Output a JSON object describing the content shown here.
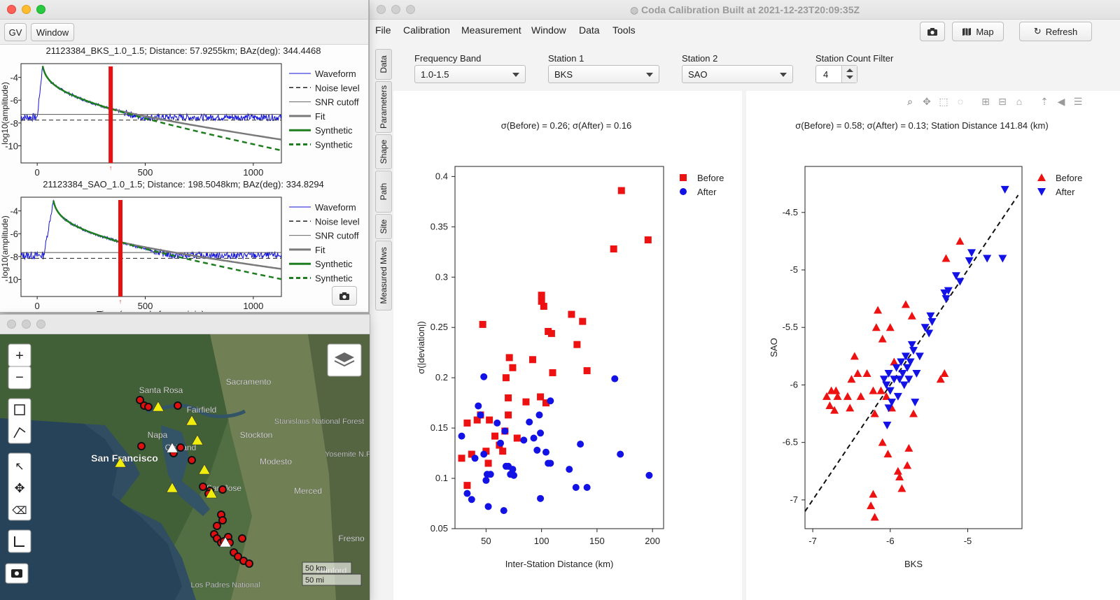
{
  "main_window": {
    "title": "Coda Calibration Built at 2021-12-23T20:09:35Z",
    "menu": [
      "File",
      "Calibration",
      "Measurement",
      "Window",
      "Data",
      "Tools"
    ],
    "toolbar": {
      "map_label": "Map",
      "refresh_label": "Refresh"
    },
    "controls": {
      "frequency_band": {
        "label": "Frequency Band",
        "value": "1.0-1.5"
      },
      "station1": {
        "label": "Station 1",
        "value": "BKS"
      },
      "station2": {
        "label": "Station 2",
        "value": "SAO"
      },
      "station_count": {
        "label": "Station Count Filter",
        "value": "4"
      }
    },
    "side_tabs": [
      "Data",
      "Parameters",
      "Shape",
      "Path",
      "Site",
      "Measured Mws"
    ]
  },
  "waveform_window": {
    "buttons": {
      "gv": "GV",
      "window": "Window"
    },
    "plot1": {
      "title": "21123384_BKS_1.0_1.5; Distance: 57.9255km; BAz(deg): 344.4468",
      "ylabel": "log10(amplitude)",
      "yticks": [
        "-4",
        "-6",
        "-8",
        "-10"
      ],
      "xticks": [
        "0",
        "500",
        "1000"
      ]
    },
    "plot2": {
      "title": "21123384_SAO_1.0_1.5; Distance: 198.5048km; BAz(deg): 334.8294",
      "ylabel": "log10(amplitude)",
      "yticks": [
        "-4",
        "-6",
        "-8",
        "-10"
      ],
      "xticks": [
        "0",
        "500",
        "1000"
      ],
      "xlabel": "Time (seconds from origin)"
    },
    "legend": [
      "Waveform",
      "Noise level",
      "SNR cutoff",
      "Fit",
      "Synthetic",
      "Synthetic"
    ],
    "colors": {
      "waveform": "#1414d8",
      "fit": "#7a7a7a",
      "synthetic": "#1e7d1e",
      "marker": "#e81010"
    }
  },
  "map_window": {
    "labels": [
      {
        "text": "Santa Rosa"
      },
      {
        "text": "Sacramento"
      },
      {
        "text": "Fairfield"
      },
      {
        "text": "Napa"
      },
      {
        "text": "Stockton"
      },
      {
        "text": "San Francisco"
      },
      {
        "text": "Oakland"
      },
      {
        "text": "Modesto"
      },
      {
        "text": "San Jose"
      },
      {
        "text": "Merced"
      },
      {
        "text": "Fresno"
      },
      {
        "text": "Hanford"
      },
      {
        "text": "Stanislaus National Forest"
      },
      {
        "text": "Yosemite N.P."
      },
      {
        "text": "Los Padres National"
      }
    ],
    "scale": {
      "km": "50 km",
      "mi": "50 mi"
    },
    "zoom_in": "+",
    "zoom_out": "−"
  },
  "chart_data": [
    {
      "type": "scatter",
      "title": "σ(Before) = 0.26; σ(After) = 0.16",
      "xlabel": "Inter-Station Distance (km)",
      "ylabel": "σ(|deviation|)",
      "xlim": [
        22,
        210
      ],
      "ylim": [
        0.05,
        0.41
      ],
      "xticks": [
        50,
        100,
        150,
        200
      ],
      "yticks": [
        0.05,
        0.1,
        0.15,
        0.2,
        0.25,
        0.3,
        0.35,
        0.4
      ],
      "legend_position": "top-right",
      "series": [
        {
          "name": "Before",
          "marker": "square",
          "color": "#ee1111",
          "points": [
            [
              28,
              0.12
            ],
            [
              33,
              0.093
            ],
            [
              33,
              0.155
            ],
            [
              37,
              0.124
            ],
            [
              42,
              0.158
            ],
            [
              45,
              0.163
            ],
            [
              47,
              0.253
            ],
            [
              50,
              0.127
            ],
            [
              52,
              0.115
            ],
            [
              53,
              0.158
            ],
            [
              58,
              0.142
            ],
            [
              62,
              0.133
            ],
            [
              65,
              0.127
            ],
            [
              67,
              0.147
            ],
            [
              68,
              0.2
            ],
            [
              70,
              0.18
            ],
            [
              70,
              0.163
            ],
            [
              71,
              0.22
            ],
            [
              74,
              0.21
            ],
            [
              78,
              0.14
            ],
            [
              86,
              0.176
            ],
            [
              92,
              0.218
            ],
            [
              99,
              0.181
            ],
            [
              100,
              0.276
            ],
            [
              100,
              0.282
            ],
            [
              102,
              0.271
            ],
            [
              104,
              0.175
            ],
            [
              106,
              0.246
            ],
            [
              109,
              0.244
            ],
            [
              110,
              0.205
            ],
            [
              127,
              0.263
            ],
            [
              132,
              0.233
            ],
            [
              137,
              0.256
            ],
            [
              141,
              0.207
            ],
            [
              165,
              0.328
            ],
            [
              172,
              0.386
            ],
            [
              196,
              0.337
            ]
          ]
        },
        {
          "name": "After",
          "marker": "circle",
          "color": "#1212e6",
          "points": [
            [
              28,
              0.142
            ],
            [
              33,
              0.085
            ],
            [
              37,
              0.079
            ],
            [
              40,
              0.12
            ],
            [
              43,
              0.172
            ],
            [
              45,
              0.163
            ],
            [
              48,
              0.201
            ],
            [
              48,
              0.124
            ],
            [
              50,
              0.098
            ],
            [
              51,
              0.104
            ],
            [
              52,
              0.072
            ],
            [
              54,
              0.104
            ],
            [
              60,
              0.155
            ],
            [
              63,
              0.135
            ],
            [
              66,
              0.068
            ],
            [
              67,
              0.147
            ],
            [
              68,
              0.112
            ],
            [
              70,
              0.112
            ],
            [
              72,
              0.104
            ],
            [
              74,
              0.109
            ],
            [
              75,
              0.103
            ],
            [
              84,
              0.138
            ],
            [
              89,
              0.156
            ],
            [
              93,
              0.14
            ],
            [
              96,
              0.128
            ],
            [
              98,
              0.163
            ],
            [
              99,
              0.145
            ],
            [
              99,
              0.08
            ],
            [
              104,
              0.126
            ],
            [
              106,
              0.115
            ],
            [
              108,
              0.177
            ],
            [
              108,
              0.115
            ],
            [
              125,
              0.109
            ],
            [
              131,
              0.091
            ],
            [
              135,
              0.134
            ],
            [
              141,
              0.091
            ],
            [
              166,
              0.199
            ],
            [
              171,
              0.124
            ],
            [
              197,
              0.103
            ]
          ]
        }
      ]
    },
    {
      "type": "scatter",
      "title": "σ(Before) = 0.58; σ(After) = 0.13; Station Distance 141.84 (km)",
      "xlabel": "BKS",
      "ylabel": "SAO",
      "xlim": [
        -7.1,
        -4.3
      ],
      "ylim": [
        -7.25,
        -4.1
      ],
      "xticks": [
        -7,
        -6,
        -5
      ],
      "yticks": [
        -4.5,
        -5,
        -5.5,
        -6,
        -6.5,
        -7
      ],
      "legend_position": "top-right",
      "fit_line": [
        [
          -7.1,
          -7.1
        ],
        [
          -4.35,
          -4.35
        ]
      ],
      "series": [
        {
          "name": "Before",
          "marker": "triangle-up",
          "color": "#ee1111",
          "points": [
            [
              -6.82,
              -6.1
            ],
            [
              -6.78,
              -6.18
            ],
            [
              -6.76,
              -6.05
            ],
            [
              -6.72,
              -6.22
            ],
            [
              -6.7,
              -6.05
            ],
            [
              -6.68,
              -6.1
            ],
            [
              -6.55,
              -6.1
            ],
            [
              -6.52,
              -6.2
            ],
            [
              -6.5,
              -5.95
            ],
            [
              -6.46,
              -5.75
            ],
            [
              -6.42,
              -5.9
            ],
            [
              -6.38,
              -6.1
            ],
            [
              -6.3,
              -5.9
            ],
            [
              -6.22,
              -6.05
            ],
            [
              -6.2,
              -6.25
            ],
            [
              -6.18,
              -5.5
            ],
            [
              -6.16,
              -5.35
            ],
            [
              -6.12,
              -6.05
            ],
            [
              -6.1,
              -5.6
            ],
            [
              -6.1,
              -6.5
            ],
            [
              -6.05,
              -6.1
            ],
            [
              -6.03,
              -6.6
            ],
            [
              -6.0,
              -5.5
            ],
            [
              -5.98,
              -6.2
            ],
            [
              -5.95,
              -5.8
            ],
            [
              -5.9,
              -6.75
            ],
            [
              -5.85,
              -6.9
            ],
            [
              -5.88,
              -6.8
            ],
            [
              -5.8,
              -5.3
            ],
            [
              -5.78,
              -6.7
            ],
            [
              -5.76,
              -6.55
            ],
            [
              -5.72,
              -5.4
            ],
            [
              -5.7,
              -6.25
            ],
            [
              -5.35,
              -5.95
            ],
            [
              -5.3,
              -5.9
            ],
            [
              -5.28,
              -4.9
            ],
            [
              -5.1,
              -4.75
            ],
            [
              -6.25,
              -7.05
            ],
            [
              -6.22,
              -6.95
            ],
            [
              -6.2,
              -7.15
            ]
          ]
        },
        {
          "name": "After",
          "marker": "triangle-down",
          "color": "#1212e6",
          "points": [
            [
              -6.08,
              -5.95
            ],
            [
              -6.05,
              -6.0
            ],
            [
              -6.02,
              -5.9
            ],
            [
              -6.0,
              -6.05
            ],
            [
              -5.98,
              -6.15
            ],
            [
              -5.95,
              -5.95
            ],
            [
              -5.92,
              -5.85
            ],
            [
              -5.9,
              -6.1
            ],
            [
              -5.88,
              -5.95
            ],
            [
              -5.86,
              -5.8
            ],
            [
              -5.84,
              -5.9
            ],
            [
              -5.82,
              -6.0
            ],
            [
              -5.8,
              -5.75
            ],
            [
              -5.78,
              -5.85
            ],
            [
              -5.76,
              -5.95
            ],
            [
              -5.74,
              -5.8
            ],
            [
              -5.72,
              -5.65
            ],
            [
              -5.7,
              -5.7
            ],
            [
              -5.68,
              -6.15
            ],
            [
              -5.66,
              -5.9
            ],
            [
              -5.62,
              -5.75
            ],
            [
              -5.55,
              -5.5
            ],
            [
              -5.5,
              -5.55
            ],
            [
              -5.48,
              -5.4
            ],
            [
              -5.46,
              -5.45
            ],
            [
              -5.3,
              -5.2
            ],
            [
              -5.28,
              -5.25
            ],
            [
              -5.25,
              -5.18
            ],
            [
              -5.15,
              -5.05
            ],
            [
              -5.1,
              -5.1
            ],
            [
              -4.98,
              -4.92
            ],
            [
              -4.95,
              -4.85
            ],
            [
              -4.75,
              -4.9
            ],
            [
              -4.55,
              -4.9
            ],
            [
              -4.52,
              -4.3
            ],
            [
              -6.04,
              -6.35
            ],
            [
              -6.02,
              -6.2
            ]
          ]
        }
      ]
    }
  ]
}
